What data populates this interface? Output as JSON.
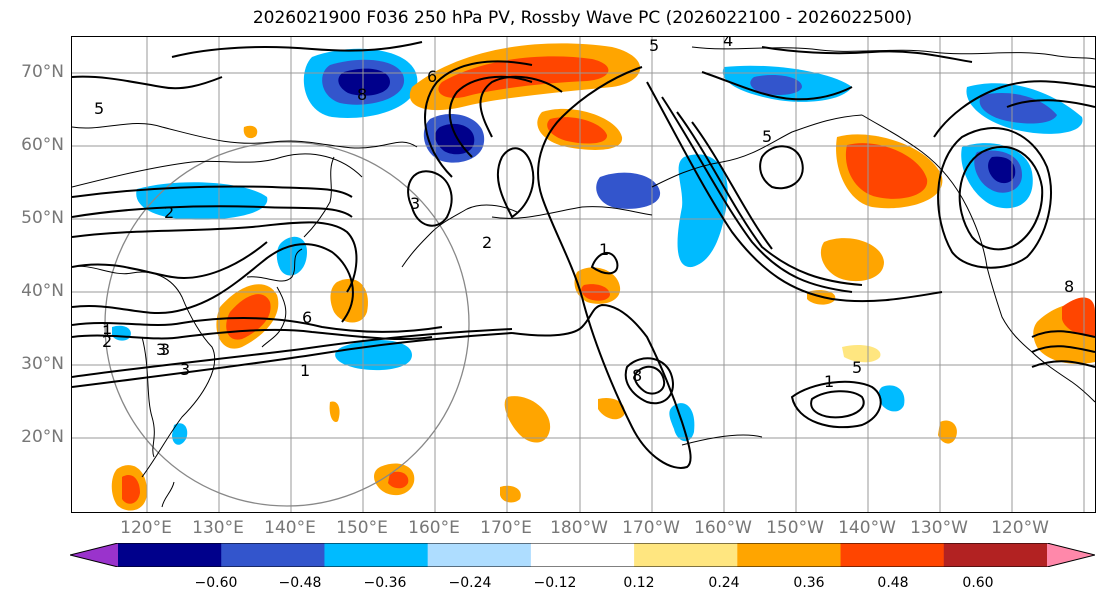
{
  "title": "2026021900 F036 250 hPa PV, Rossby Wave PC (2026022100 - 2026022500)",
  "lat_labels": [
    "70°N",
    "60°N",
    "50°N",
    "40°N",
    "30°N",
    "20°N"
  ],
  "lon_labels": [
    "120°E",
    "130°E",
    "140°E",
    "150°E",
    "160°E",
    "170°E",
    "180°W",
    "170°W",
    "160°W",
    "150°W",
    "140°W",
    "130°W",
    "120°W"
  ],
  "colorbar": {
    "ticks": [
      "−0.60",
      "−0.48",
      "−0.36",
      "−0.24",
      "−0.12",
      "0.12",
      "0.24",
      "0.36",
      "0.48",
      "0.60"
    ],
    "colors": [
      "#9a33cc",
      "#00008b",
      "#3355cc",
      "#00bbff",
      "#aeddff",
      "#ffffff",
      "#ffe680",
      "#ffa500",
      "#ff4500",
      "#b22222",
      "#ff88aa"
    ]
  },
  "map_data": {
    "field": "250 hPa PV",
    "shaded": "Rossby Wave PC",
    "contour_labels": [
      "5",
      "4",
      "5",
      "8",
      "6",
      "5",
      "2",
      "3",
      "1",
      "2",
      "3",
      "1",
      "3",
      "1",
      "8",
      "1",
      "5",
      "1",
      "2",
      "3",
      "6",
      "8"
    ]
  }
}
